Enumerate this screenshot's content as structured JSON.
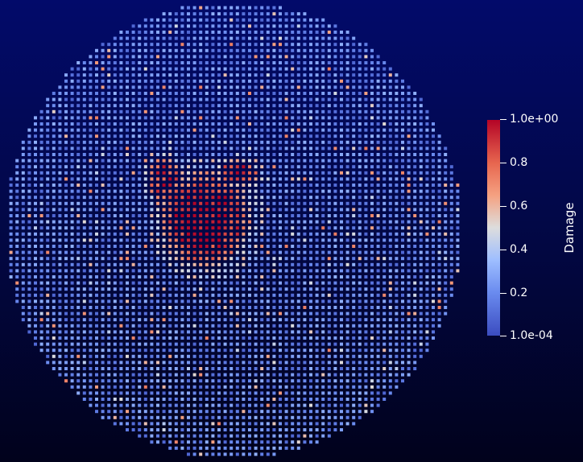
{
  "colorbar": {
    "title": "Damage",
    "labels": [
      "1.0e+00",
      "0.8",
      "0.6",
      "0.4",
      "0.2",
      "1.0e-04"
    ],
    "colormap": [
      "#3b4cc0",
      "#dddddd",
      "#b40426"
    ],
    "range": [
      0.0001,
      1.0
    ]
  },
  "background": {
    "top": "#020a6a",
    "bottom": "#01021c"
  }
}
